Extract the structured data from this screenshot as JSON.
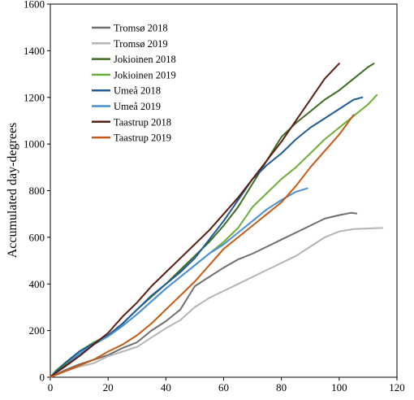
{
  "chart_data": {
    "type": "line",
    "title": "",
    "xlabel": "",
    "ylabel": "Accumulated day-degrees",
    "xlim": [
      0,
      120
    ],
    "ylim": [
      0,
      1600
    ],
    "xticks": [
      0,
      20,
      40,
      60,
      80,
      100,
      120
    ],
    "yticks": [
      0,
      200,
      400,
      600,
      800,
      1000,
      1200,
      1400,
      1600
    ],
    "grid": false,
    "legend_position": "top-left",
    "series": [
      {
        "name": "Tromsø 2018",
        "color": "#6e6e6e",
        "x": [
          0,
          5,
          10,
          15,
          20,
          25,
          30,
          35,
          40,
          45,
          50,
          55,
          60,
          65,
          70,
          75,
          80,
          85,
          90,
          95,
          100,
          104,
          106
        ],
        "y": [
          0,
          30,
          55,
          75,
          95,
          125,
          150,
          200,
          240,
          290,
          390,
          430,
          470,
          505,
          530,
          560,
          590,
          620,
          650,
          680,
          695,
          705,
          702
        ]
      },
      {
        "name": "Tromsø 2019",
        "color": "#b4b4b4",
        "x": [
          0,
          5,
          10,
          15,
          20,
          25,
          30,
          35,
          40,
          45,
          50,
          55,
          60,
          65,
          70,
          75,
          80,
          85,
          90,
          95,
          100,
          105,
          110,
          115
        ],
        "y": [
          0,
          25,
          45,
          60,
          90,
          110,
          130,
          170,
          210,
          245,
          300,
          340,
          370,
          400,
          430,
          460,
          490,
          520,
          560,
          600,
          625,
          635,
          638,
          640
        ]
      },
      {
        "name": "Jokioinen 2018",
        "color": "#3d6b20",
        "x": [
          0,
          2,
          5,
          10,
          15,
          20,
          25,
          30,
          35,
          40,
          45,
          50,
          55,
          60,
          65,
          70,
          75,
          80,
          85,
          90,
          95,
          100,
          105,
          110,
          112
        ],
        "y": [
          0,
          20,
          50,
          100,
          140,
          180,
          230,
          290,
          345,
          400,
          460,
          520,
          580,
          650,
          730,
          830,
          930,
          1030,
          1090,
          1140,
          1190,
          1230,
          1280,
          1330,
          1345
        ]
      },
      {
        "name": "Jokioinen 2019",
        "color": "#6cae3a",
        "x": [
          0,
          2,
          5,
          10,
          15,
          20,
          25,
          30,
          35,
          40,
          45,
          50,
          55,
          60,
          65,
          70,
          75,
          80,
          85,
          90,
          95,
          100,
          105,
          110,
          113
        ],
        "y": [
          0,
          30,
          60,
          110,
          150,
          180,
          220,
          270,
          325,
          380,
          430,
          480,
          530,
          580,
          640,
          730,
          790,
          850,
          900,
          960,
          1020,
          1070,
          1120,
          1170,
          1210
        ]
      },
      {
        "name": "Umeå 2018",
        "color": "#1f5c96",
        "x": [
          0,
          2,
          5,
          10,
          15,
          20,
          25,
          30,
          35,
          40,
          45,
          50,
          55,
          60,
          65,
          70,
          75,
          80,
          85,
          90,
          95,
          100,
          105,
          108
        ],
        "y": [
          0,
          25,
          60,
          110,
          145,
          180,
          230,
          290,
          350,
          400,
          450,
          510,
          590,
          670,
          760,
          850,
          910,
          960,
          1020,
          1070,
          1110,
          1150,
          1190,
          1200
        ]
      },
      {
        "name": "Umeå 2019",
        "color": "#4a8fd6",
        "x": [
          0,
          2,
          5,
          10,
          15,
          20,
          25,
          30,
          35,
          40,
          45,
          50,
          55,
          60,
          65,
          70,
          75,
          80,
          85,
          89
        ],
        "y": [
          0,
          20,
          45,
          100,
          140,
          175,
          220,
          270,
          325,
          380,
          430,
          480,
          530,
          570,
          620,
          670,
          720,
          760,
          795,
          810
        ]
      },
      {
        "name": "Taastrup 2018",
        "color": "#5a1e12",
        "x": [
          0,
          2,
          5,
          10,
          15,
          20,
          25,
          30,
          35,
          40,
          45,
          50,
          55,
          60,
          65,
          70,
          75,
          80,
          85,
          90,
          95,
          100
        ],
        "y": [
          0,
          20,
          45,
          90,
          140,
          190,
          260,
          320,
          390,
          450,
          510,
          570,
          630,
          700,
          770,
          850,
          930,
          1010,
          1100,
          1190,
          1280,
          1345
        ]
      },
      {
        "name": "Taastrup 2019",
        "color": "#c65a14",
        "x": [
          0,
          2,
          5,
          10,
          15,
          20,
          25,
          30,
          35,
          40,
          45,
          50,
          55,
          60,
          65,
          70,
          75,
          80,
          85,
          90,
          95,
          100,
          105
        ],
        "y": [
          0,
          10,
          25,
          50,
          75,
          110,
          140,
          180,
          230,
          290,
          350,
          410,
          480,
          550,
          600,
          650,
          700,
          750,
          820,
          900,
          970,
          1040,
          1125
        ]
      }
    ]
  }
}
